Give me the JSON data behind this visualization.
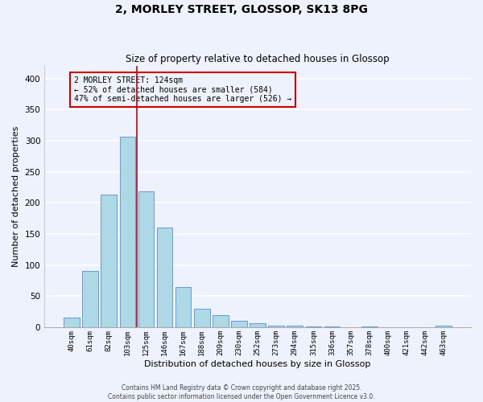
{
  "title": "2, MORLEY STREET, GLOSSOP, SK13 8PG",
  "subtitle": "Size of property relative to detached houses in Glossop",
  "xlabel": "Distribution of detached houses by size in Glossop",
  "ylabel": "Number of detached properties",
  "bar_labels": [
    "40sqm",
    "61sqm",
    "82sqm",
    "103sqm",
    "125sqm",
    "146sqm",
    "167sqm",
    "188sqm",
    "209sqm",
    "230sqm",
    "252sqm",
    "273sqm",
    "294sqm",
    "315sqm",
    "336sqm",
    "357sqm",
    "378sqm",
    "400sqm",
    "421sqm",
    "442sqm",
    "463sqm"
  ],
  "bar_values": [
    15,
    90,
    213,
    306,
    218,
    160,
    65,
    30,
    19,
    10,
    6,
    3,
    2,
    1,
    1,
    0,
    1,
    0,
    0,
    0,
    2
  ],
  "bar_color": "#add8e6",
  "bar_edge_color": "#6699dd",
  "bar_edge_width": 0.7,
  "marker_bar_index": 4,
  "marker_color": "#cc0000",
  "marker_label": "2 MORLEY STREET: 124sqm",
  "annotation_line1": "← 52% of detached houses are smaller (584)",
  "annotation_line2": "47% of semi-detached houses are larger (526) →",
  "ylim": [
    0,
    420
  ],
  "yticks": [
    0,
    50,
    100,
    150,
    200,
    250,
    300,
    350,
    400
  ],
  "background_color": "#eef2fc",
  "grid_color": "#ffffff",
  "annotation_box_edge_color": "#cc0000",
  "footer_line1": "Contains HM Land Registry data © Crown copyright and database right 2025.",
  "footer_line2": "Contains public sector information licensed under the Open Government Licence v3.0."
}
